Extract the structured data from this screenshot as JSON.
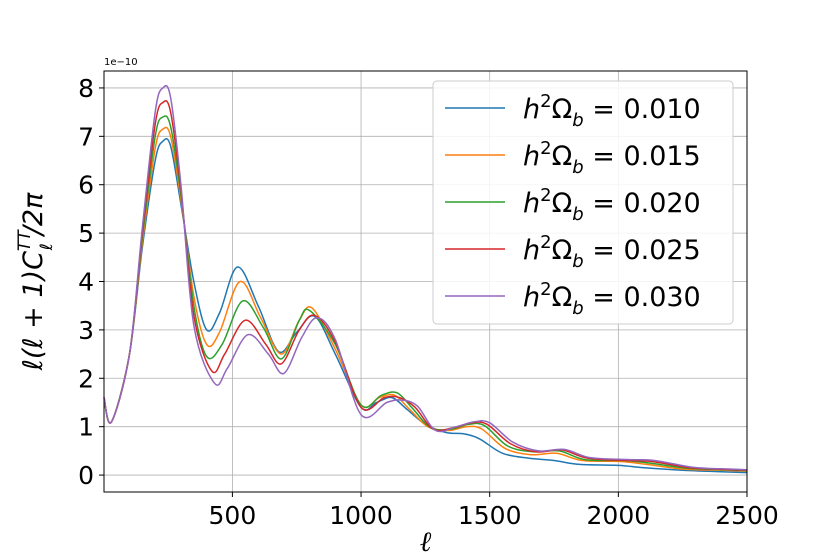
{
  "chart_data": {
    "type": "line",
    "xlabel": "ℓ",
    "ylabel": "ℓ(ℓ + 1)C",
    "ylabel_sup": "TT",
    "ylabel_sub": "ℓ",
    "ylabel_tail": "/2π",
    "offset_text": "1e−10",
    "xlim": [
      1,
      2500
    ],
    "ylim": [
      -0.35,
      8.35
    ],
    "xticks": [
      500,
      1000,
      1500,
      2000,
      2500
    ],
    "yticks": [
      0,
      1,
      2,
      3,
      4,
      5,
      6,
      7,
      8
    ],
    "grid": true,
    "legend_position": "top-right",
    "series": [
      {
        "name": "h²Ω_b = 0.010",
        "legend_value": "0.010",
        "color": "#1f77b4",
        "x": [
          1,
          30,
          100,
          150,
          200,
          230,
          260,
          300,
          350,
          400,
          450,
          520,
          600,
          680,
          750,
          820,
          900,
          1000,
          1060,
          1120,
          1180,
          1250,
          1330,
          1400,
          1460,
          1550,
          1650,
          1750,
          1850,
          2000,
          2100,
          2250,
          2400,
          2500
        ],
        "y": [
          1.6,
          1.1,
          2.5,
          4.7,
          6.5,
          6.9,
          6.8,
          5.6,
          4.0,
          3.0,
          3.35,
          4.3,
          3.5,
          2.55,
          2.95,
          3.28,
          2.5,
          1.4,
          1.5,
          1.6,
          1.35,
          1.05,
          0.88,
          0.85,
          0.75,
          0.45,
          0.35,
          0.3,
          0.22,
          0.2,
          0.15,
          0.1,
          0.07,
          0.05
        ]
      },
      {
        "name": "h²Ω_b = 0.015",
        "legend_value": "0.015",
        "color": "#ff7f0e",
        "x": [
          1,
          30,
          100,
          150,
          200,
          230,
          260,
          300,
          350,
          400,
          450,
          530,
          610,
          690,
          760,
          810,
          900,
          1000,
          1070,
          1130,
          1190,
          1260,
          1340,
          1410,
          1470,
          1560,
          1660,
          1760,
          1860,
          2010,
          2110,
          2260,
          2400,
          2500
        ],
        "y": [
          1.6,
          1.1,
          2.5,
          4.8,
          6.75,
          7.15,
          7.0,
          5.7,
          3.7,
          2.7,
          2.95,
          4.0,
          3.25,
          2.5,
          3.2,
          3.45,
          2.6,
          1.45,
          1.6,
          1.65,
          1.35,
          1.0,
          0.92,
          1.0,
          0.95,
          0.55,
          0.42,
          0.45,
          0.3,
          0.28,
          0.22,
          0.12,
          0.1,
          0.08
        ]
      },
      {
        "name": "h²Ω_b = 0.020",
        "legend_value": "0.020",
        "color": "#2ca02c",
        "x": [
          1,
          30,
          100,
          150,
          200,
          230,
          260,
          300,
          350,
          400,
          460,
          540,
          620,
          690,
          760,
          800,
          900,
          1000,
          1080,
          1140,
          1200,
          1270,
          1350,
          1420,
          1480,
          1570,
          1670,
          1770,
          1870,
          2020,
          2120,
          2270,
          2400,
          2500
        ],
        "y": [
          1.6,
          1.1,
          2.5,
          4.9,
          7.0,
          7.4,
          7.2,
          5.8,
          3.5,
          2.45,
          2.7,
          3.6,
          3.05,
          2.4,
          3.2,
          3.4,
          2.7,
          1.45,
          1.65,
          1.7,
          1.38,
          0.98,
          0.95,
          1.05,
          1.02,
          0.6,
          0.48,
          0.5,
          0.32,
          0.3,
          0.25,
          0.14,
          0.11,
          0.09
        ]
      },
      {
        "name": "h²Ω_b = 0.025",
        "legend_value": "0.025",
        "color": "#d62728",
        "x": [
          1,
          30,
          100,
          150,
          200,
          230,
          260,
          300,
          350,
          420,
          470,
          550,
          630,
          690,
          760,
          820,
          900,
          1000,
          1090,
          1150,
          1210,
          1280,
          1360,
          1430,
          1490,
          1580,
          1680,
          1780,
          1880,
          2030,
          2130,
          2280,
          2400,
          2500
        ],
        "y": [
          1.6,
          1.1,
          2.5,
          5.0,
          7.25,
          7.7,
          7.5,
          5.9,
          3.3,
          2.15,
          2.5,
          3.2,
          2.7,
          2.3,
          3.0,
          3.3,
          2.75,
          1.4,
          1.6,
          1.6,
          1.4,
          0.95,
          0.98,
          1.08,
          1.05,
          0.65,
          0.48,
          0.52,
          0.35,
          0.3,
          0.28,
          0.15,
          0.12,
          0.1
        ]
      },
      {
        "name": "h²Ω_b = 0.030",
        "legend_value": "0.030",
        "color": "#9467bd",
        "x": [
          1,
          30,
          100,
          150,
          200,
          230,
          260,
          300,
          350,
          430,
          480,
          560,
          640,
          700,
          770,
          830,
          900,
          1000,
          1100,
          1160,
          1220,
          1290,
          1370,
          1440,
          1500,
          1590,
          1690,
          1790,
          1890,
          2040,
          2140,
          2290,
          2400,
          2500
        ],
        "y": [
          1.6,
          1.1,
          2.5,
          5.1,
          7.5,
          8.0,
          7.8,
          6.0,
          3.1,
          1.9,
          2.2,
          2.9,
          2.5,
          2.1,
          2.85,
          3.25,
          2.8,
          1.25,
          1.5,
          1.55,
          1.42,
          0.92,
          1.0,
          1.1,
          1.08,
          0.68,
          0.5,
          0.53,
          0.36,
          0.32,
          0.3,
          0.16,
          0.13,
          0.11
        ]
      }
    ]
  }
}
